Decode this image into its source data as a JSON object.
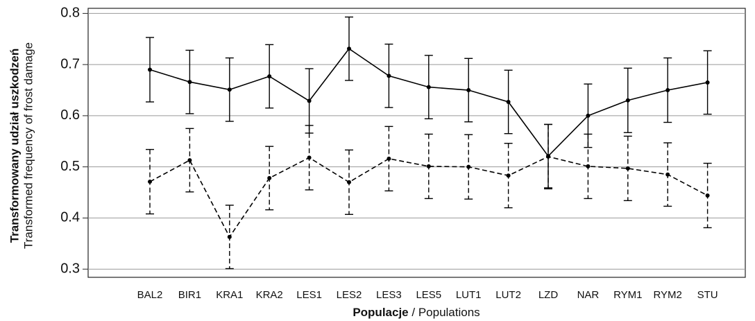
{
  "chart_data": {
    "type": "line",
    "ylabel": [
      "Transformowany udział uszkodzeń",
      "Transformed frequency of frost damage"
    ],
    "xlabel": {
      "bold": "Populacje",
      "regular": "/ Populations"
    },
    "categories": [
      "BAL2",
      "BIR1",
      "KRA1",
      "KRA2",
      "LES1",
      "LES2",
      "LES3",
      "LES5",
      "LUT1",
      "LUT2",
      "LZD",
      "NAR",
      "RYM1",
      "RYM2",
      "STU"
    ],
    "series": [
      {
        "color": "#000000",
        "linestyle": "solid",
        "values": [
          0.69,
          0.666,
          0.651,
          0.677,
          0.629,
          0.731,
          0.678,
          0.656,
          0.65,
          0.627,
          0.521,
          0.6,
          0.63,
          0.65,
          0.665
        ],
        "errors": [
          0.063,
          0.062,
          0.062,
          0.062,
          0.063,
          0.062,
          0.062,
          0.062,
          0.062,
          0.062,
          0.062,
          0.062,
          0.063,
          0.063,
          0.062
        ]
      },
      {
        "color": "#000000",
        "linestyle": "dashed",
        "values": [
          0.471,
          0.513,
          0.363,
          0.478,
          0.518,
          0.47,
          0.516,
          0.501,
          0.5,
          0.483,
          0.52,
          0.501,
          0.497,
          0.485,
          0.444
        ],
        "errors": [
          0.063,
          0.062,
          0.062,
          0.062,
          0.063,
          0.063,
          0.063,
          0.063,
          0.063,
          0.063,
          0.063,
          0.063,
          0.063,
          0.062,
          0.063
        ]
      }
    ],
    "ylim": [
      0.284,
      0.81
    ],
    "yticks": [
      0.3,
      0.4,
      0.5,
      0.6,
      0.7,
      0.8
    ],
    "grid": true
  }
}
